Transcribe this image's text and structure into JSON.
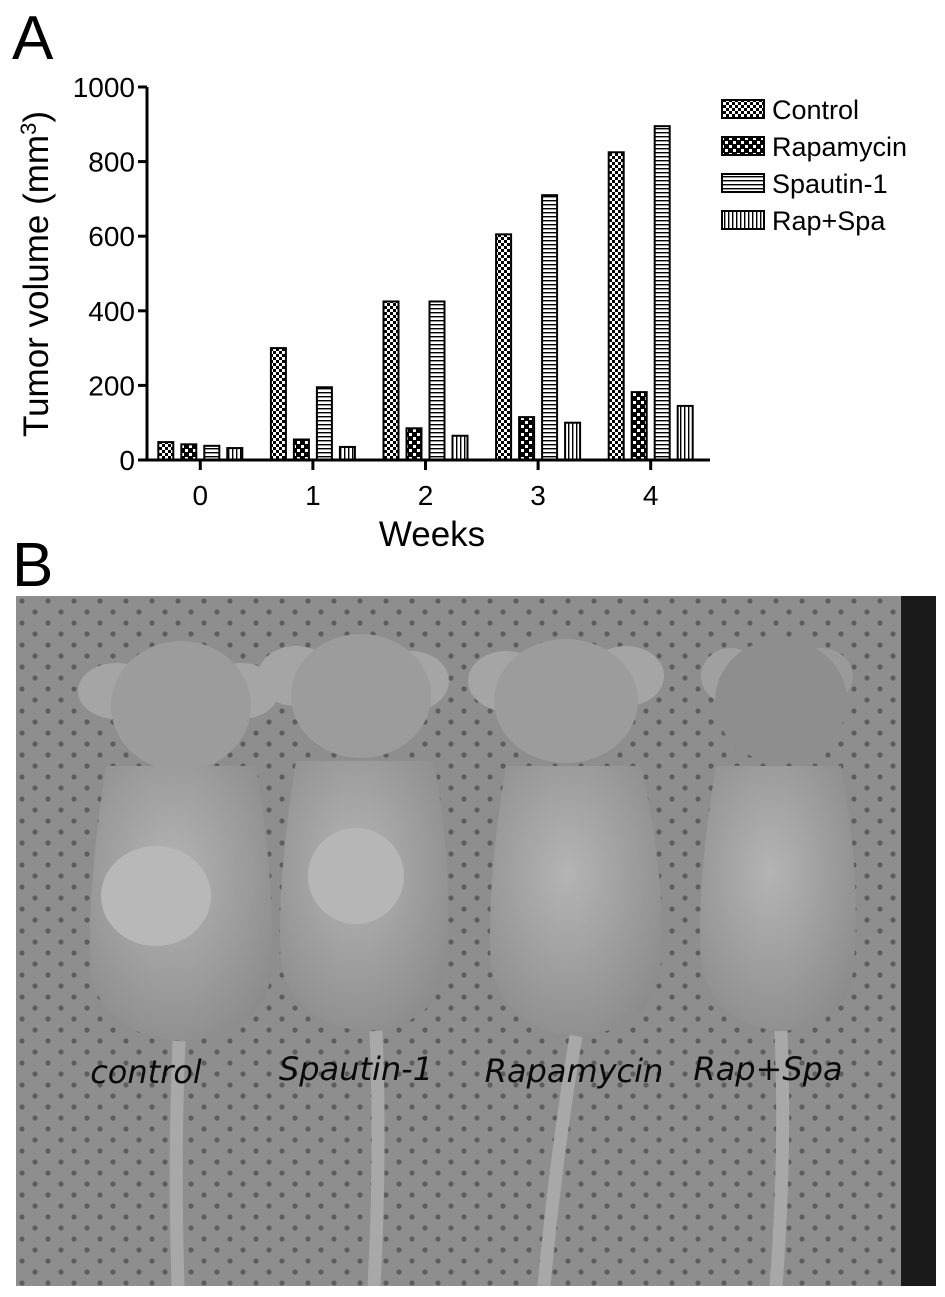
{
  "panels": {
    "a_label": "A",
    "b_label": "B"
  },
  "chart_data": {
    "type": "bar",
    "title": "",
    "xlabel": "Weeks",
    "ylabel": "Tumor volume (mm",
    "ylabel_sup": "3",
    "ylabel_suffix": ")",
    "categories": [
      "0",
      "1",
      "2",
      "3",
      "4"
    ],
    "ylim": [
      0,
      1000
    ],
    "yticks": [
      0,
      200,
      400,
      600,
      800,
      1000
    ],
    "grid": false,
    "legend": "top-right",
    "series": [
      {
        "name": "Control",
        "values": [
          48,
          300,
          425,
          605,
          825
        ],
        "pattern": "checker"
      },
      {
        "name": "Rapamycin",
        "values": [
          42,
          55,
          85,
          115,
          182
        ],
        "pattern": "dots"
      },
      {
        "name": "Spautin-1",
        "values": [
          38,
          195,
          425,
          710,
          895
        ],
        "pattern": "hlines"
      },
      {
        "name": "Rap+Spa",
        "values": [
          32,
          35,
          65,
          100,
          145
        ],
        "pattern": "vlines"
      }
    ]
  },
  "photo": {
    "captions": [
      "control",
      "Spautin-1",
      "Rapamycin",
      "Rap+Spa"
    ]
  }
}
